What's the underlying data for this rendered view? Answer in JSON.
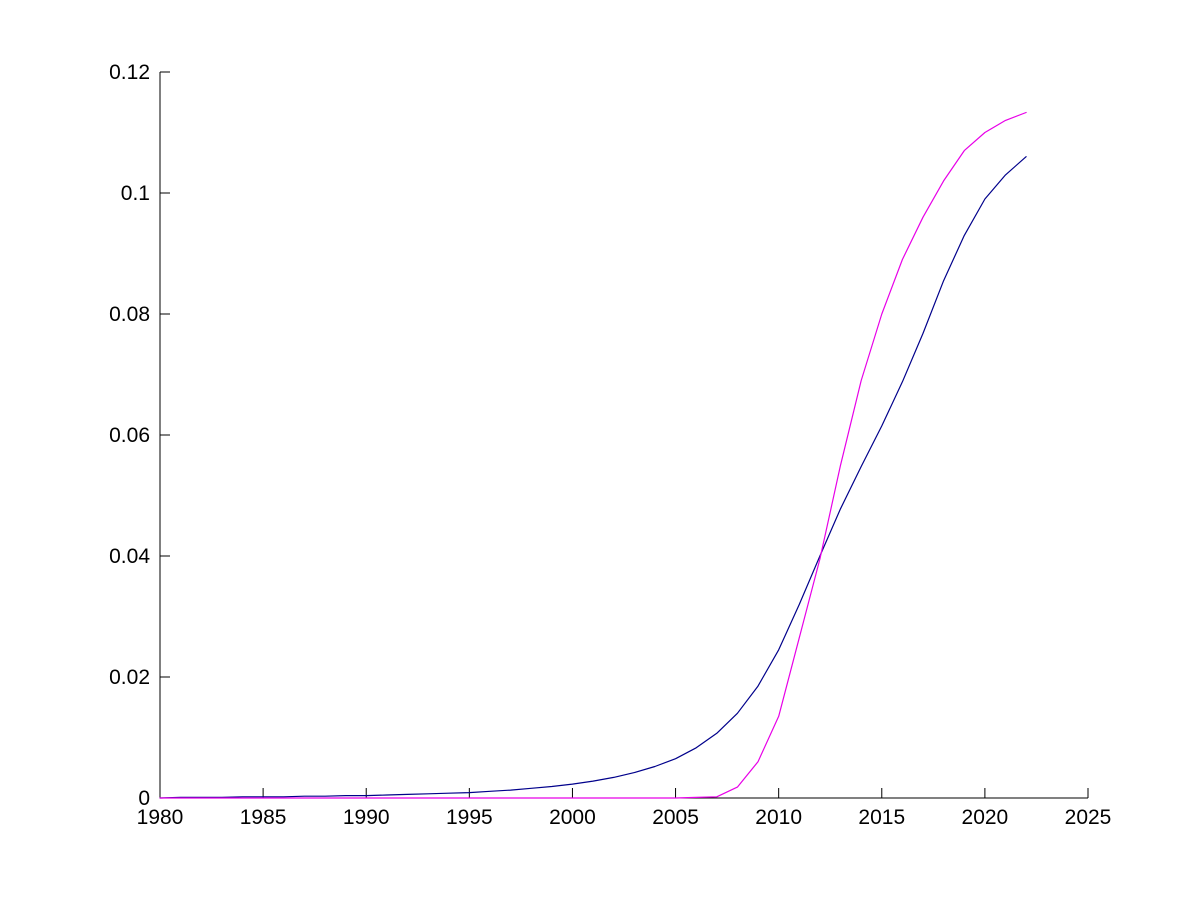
{
  "figure": {
    "background": "#ffffff",
    "axis_color": "#000000"
  },
  "chart_data": {
    "type": "line",
    "title": "",
    "xlabel": "",
    "ylabel": "",
    "xlim": [
      1980,
      2025
    ],
    "ylim": [
      0,
      0.12
    ],
    "grid": false,
    "legend": null,
    "box": "left-bottom-only",
    "tick_direction": "in",
    "xticks": [
      1980,
      1985,
      1990,
      1995,
      2000,
      2005,
      2010,
      2015,
      2020,
      2025
    ],
    "xtick_labels": [
      "1980",
      "1985",
      "1990",
      "1995",
      "2000",
      "2005",
      "2010",
      "2015",
      "2020",
      "2025"
    ],
    "yticks": [
      0,
      0.02,
      0.04,
      0.06,
      0.08,
      0.1,
      0.12
    ],
    "ytick_labels": [
      "0",
      "0.02",
      "0.04",
      "0.06",
      "0.08",
      "0.1",
      "0.12"
    ],
    "x": [
      1980,
      1981,
      1982,
      1983,
      1984,
      1985,
      1986,
      1987,
      1988,
      1989,
      1990,
      1991,
      1992,
      1993,
      1994,
      1995,
      1996,
      1997,
      1998,
      1999,
      2000,
      2001,
      2002,
      2003,
      2004,
      2005,
      2006,
      2007,
      2008,
      2009,
      2010,
      2011,
      2012,
      2013,
      2014,
      2015,
      2016,
      2017,
      2018,
      2019,
      2020,
      2021,
      2022
    ],
    "series": [
      {
        "name": "dark-blue-curve",
        "color": "#00008B",
        "values": [
          0.0,
          0.0001,
          0.0001,
          0.0001,
          0.0002,
          0.0002,
          0.0002,
          0.0003,
          0.0003,
          0.0004,
          0.0004,
          0.0005,
          0.0006,
          0.0007,
          0.0008,
          0.0009,
          0.0011,
          0.0013,
          0.0016,
          0.0019,
          0.0023,
          0.0028,
          0.0034,
          0.0042,
          0.0052,
          0.0065,
          0.0083,
          0.0107,
          0.014,
          0.0185,
          0.0245,
          0.032,
          0.04,
          0.0478,
          0.0548,
          0.0615,
          0.0688,
          0.0768,
          0.0855,
          0.093,
          0.099,
          0.103,
          0.106
        ]
      },
      {
        "name": "magenta-curve",
        "color": "#E800E8",
        "values": [
          0.0,
          0.0,
          0.0,
          0.0,
          0.0,
          0.0,
          0.0,
          0.0,
          0.0,
          0.0,
          0.0,
          0.0,
          0.0,
          0.0,
          0.0,
          0.0,
          0.0,
          0.0,
          0.0,
          0.0,
          0.0,
          0.0,
          0.0,
          0.0,
          0.0,
          0.0,
          0.0001,
          0.0002,
          0.0018,
          0.006,
          0.0135,
          0.0265,
          0.0395,
          0.055,
          0.069,
          0.08,
          0.089,
          0.096,
          0.102,
          0.107,
          0.11,
          0.112,
          0.1133
        ]
      }
    ],
    "annotations": {
      "curves_cross_at": {
        "x": 2012.2,
        "y": 0.042
      }
    }
  }
}
